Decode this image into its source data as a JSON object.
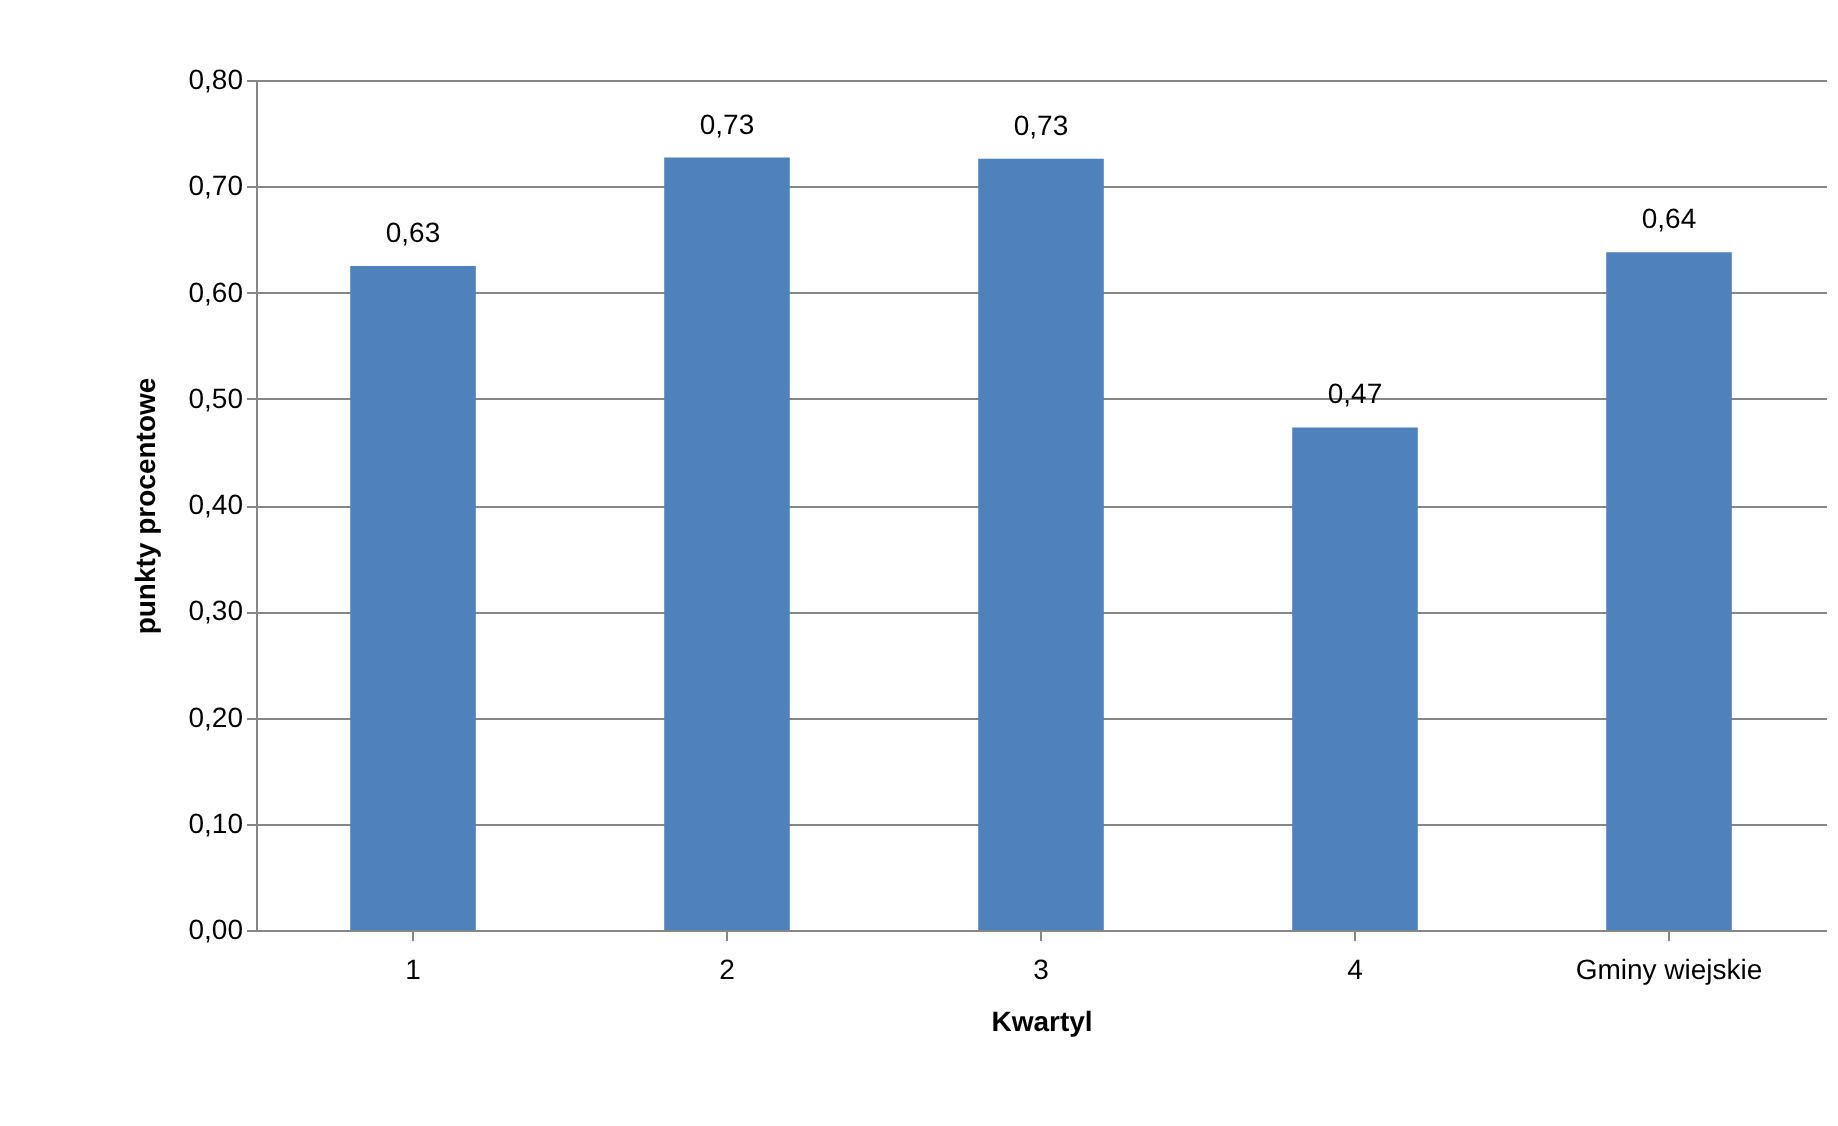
{
  "chart_data": {
    "type": "bar",
    "xlabel": "Kwartyl",
    "ylabel": "punkty procentowe",
    "categories": [
      "1",
      "2",
      "3",
      "4",
      "Gminy wiejskie"
    ],
    "values": [
      0.625,
      0.727,
      0.726,
      0.473,
      0.638
    ],
    "value_labels": [
      "0,63",
      "0,73",
      "0,73",
      "0,47",
      "0,64"
    ],
    "color": "#4f81bd",
    "ylim": [
      0,
      0.8
    ],
    "yticks": [
      {
        "value": 0,
        "label": "0,00"
      },
      {
        "value": 0.1,
        "label": "0,10"
      },
      {
        "value": 0.2,
        "label": "0,20"
      },
      {
        "value": 0.3,
        "label": "0,30"
      },
      {
        "value": 0.4,
        "label": "0,40"
      },
      {
        "value": 0.5,
        "label": "0,50"
      },
      {
        "value": 0.6,
        "label": "0,60"
      },
      {
        "value": 0.7,
        "label": "0,70"
      },
      {
        "value": 0.8,
        "label": "0,80"
      }
    ],
    "grid": "y"
  }
}
